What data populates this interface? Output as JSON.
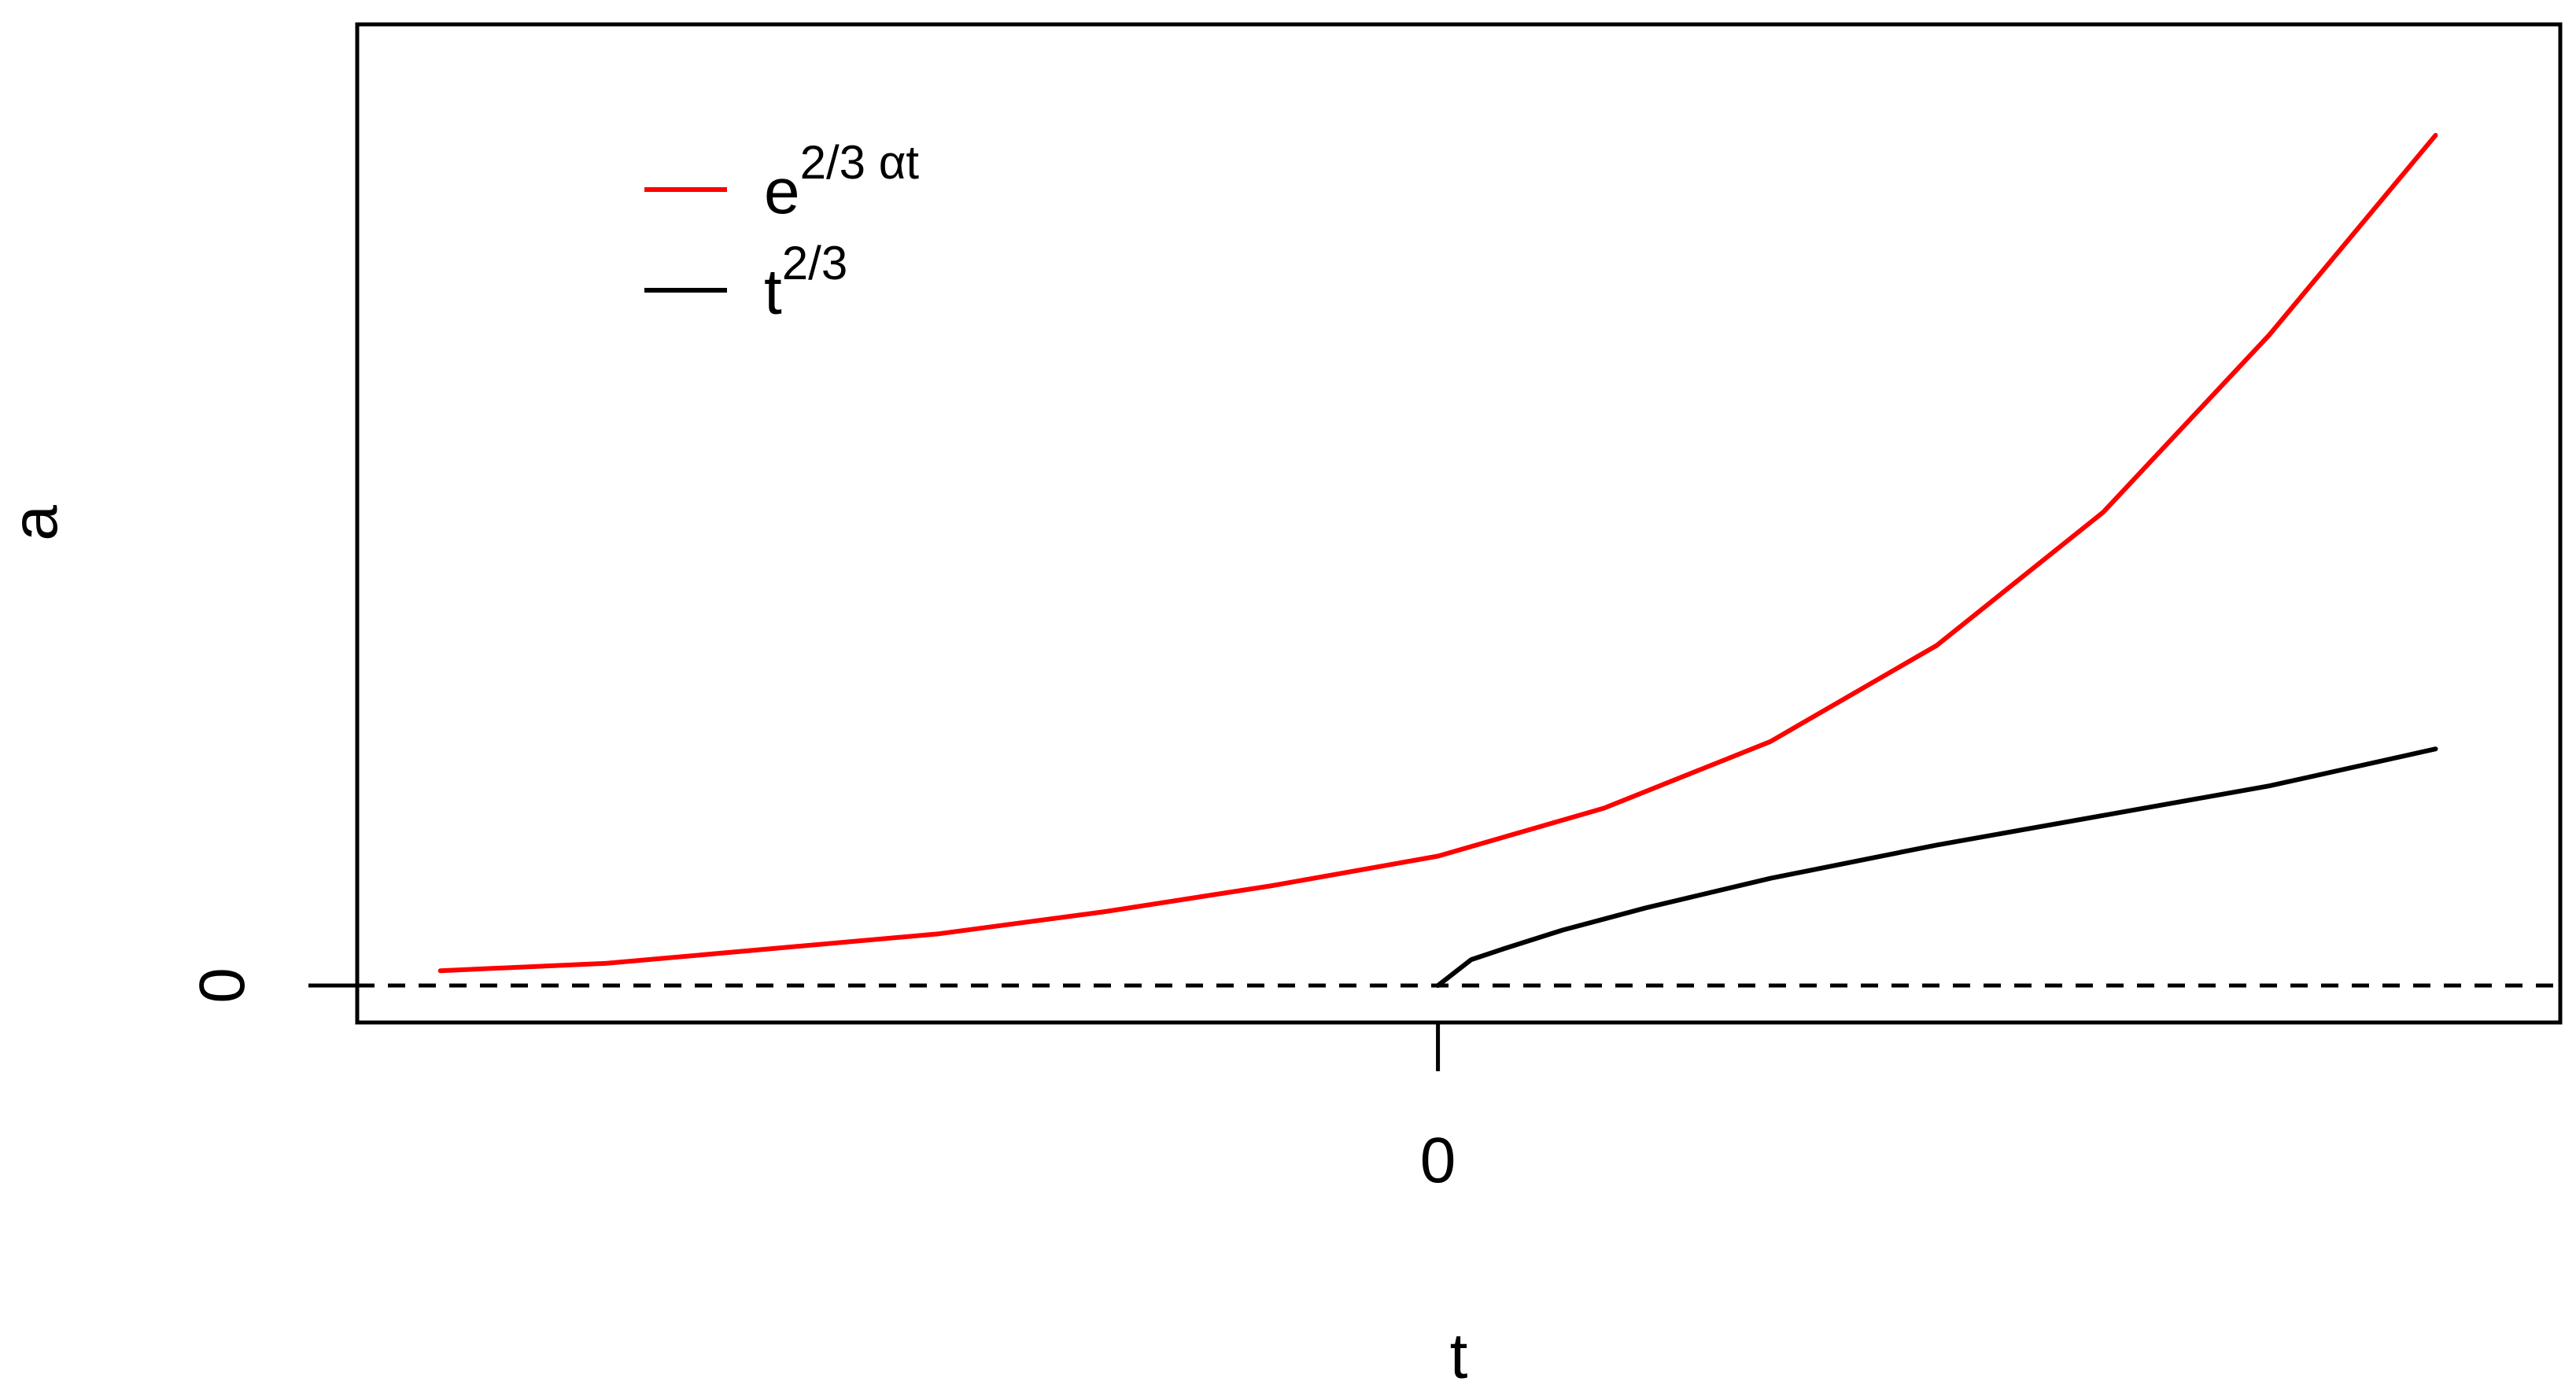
{
  "chart_data": {
    "type": "line",
    "xlabel": "t",
    "ylabel": "a",
    "xlim": [
      -1.3,
      1.35
    ],
    "ylim": [
      -0.05,
      1.3
    ],
    "x_ticks": [
      {
        "value": 0,
        "label": "0"
      }
    ],
    "y_ticks": [
      {
        "value": 0,
        "label": "0"
      }
    ],
    "reference_line": {
      "y": 0,
      "style": "dashed",
      "color": "#000000"
    },
    "grid": false,
    "legend_position": "top-left",
    "series": [
      {
        "name": "e^{2/3 αt}",
        "legend": {
          "base": "e",
          "sup": "2/3 αt"
        },
        "color": "#ff0000",
        "x": [
          -1.2,
          -1.0,
          -0.8,
          -0.6,
          -0.4,
          -0.2,
          0.0,
          0.2,
          0.4,
          0.6,
          0.8,
          1.0,
          1.2
        ],
        "y": [
          0.02,
          0.03,
          0.05,
          0.07,
          0.1,
          0.135,
          0.175,
          0.24,
          0.33,
          0.46,
          0.64,
          0.88,
          1.15
        ]
      },
      {
        "name": "t^{2/3}",
        "legend": {
          "base": "t",
          "sup": "2/3"
        },
        "color": "#000000",
        "x": [
          0.0,
          0.04,
          0.08,
          0.15,
          0.25,
          0.4,
          0.6,
          0.8,
          1.0,
          1.2
        ],
        "y": [
          0.0,
          0.035,
          0.05,
          0.075,
          0.105,
          0.145,
          0.19,
          0.23,
          0.27,
          0.32
        ]
      }
    ]
  }
}
